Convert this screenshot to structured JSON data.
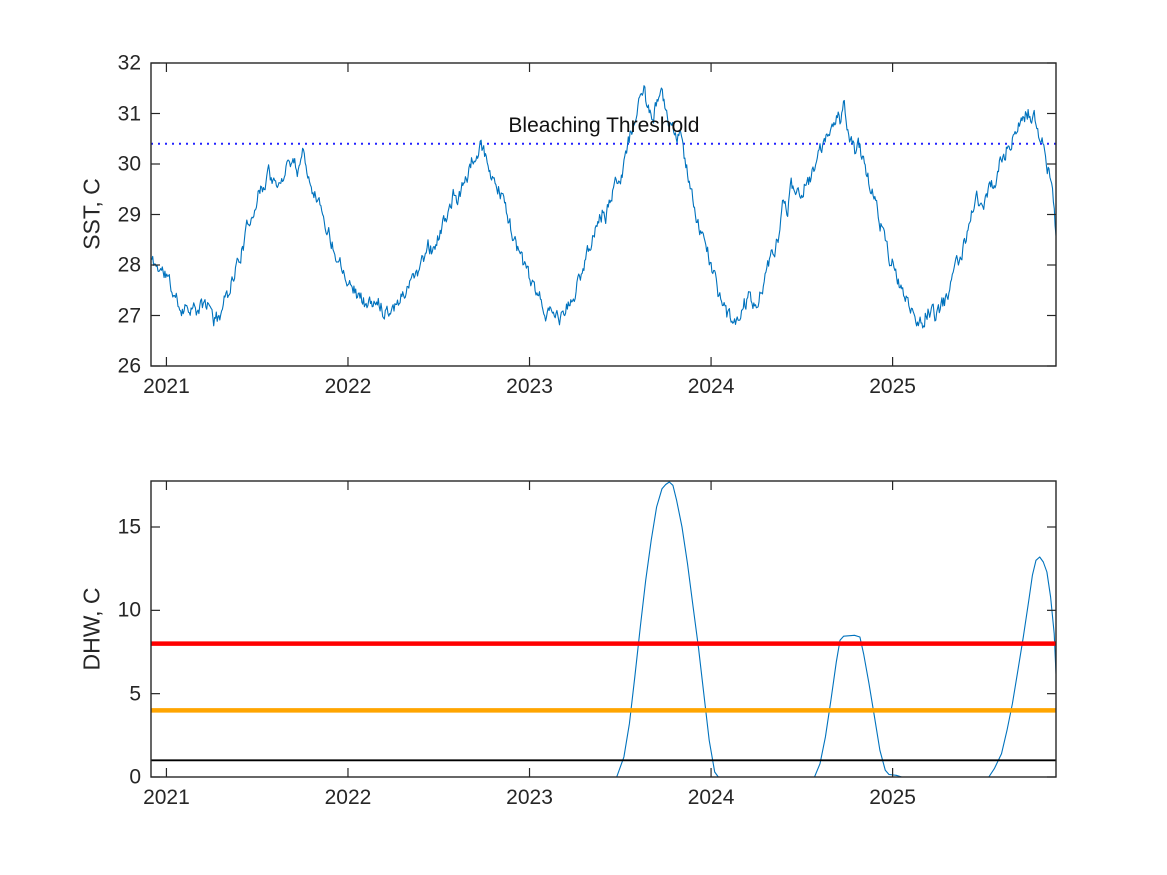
{
  "figure": {
    "background": "#ffffff",
    "axis_color": "#262626",
    "text_color": "#262626"
  },
  "chart_data": [
    {
      "type": "line",
      "title": "",
      "xlabel": "",
      "ylabel": "SST, C",
      "xlim": [
        2020.915,
        2025.9
      ],
      "ylim": [
        26,
        32
      ],
      "xticks": [
        2021,
        2022,
        2023,
        2024,
        2025
      ],
      "xtick_labels": [
        "2021",
        "2022",
        "2023",
        "2024",
        "2025"
      ],
      "yticks": [
        26,
        27,
        28,
        29,
        30,
        31,
        32
      ],
      "ytick_labels": [
        "26",
        "27",
        "28",
        "29",
        "30",
        "31",
        "32"
      ],
      "grid": false,
      "legend": "none",
      "annotation": {
        "text": "Bleaching Threshold",
        "x": 2023.41,
        "y": 30.4
      },
      "series": [
        {
          "id": "bleaching-threshold",
          "color": "#2222FF",
          "style": "dotted",
          "width": 2,
          "value": 30.4
        },
        {
          "id": "sst-daily",
          "color": "#0072BD",
          "style": "solid",
          "width": 1.1,
          "noise": {
            "amplitude": 0.13,
            "seed": 11,
            "samples": 1040,
            "persistence": 0.55
          },
          "points": [
            [
              2020.915,
              28.1
            ],
            [
              2020.94,
              28.0
            ],
            [
              2021.0,
              27.8
            ],
            [
              2021.04,
              27.4
            ],
            [
              2021.08,
              27.15
            ],
            [
              2021.13,
              27.2
            ],
            [
              2021.17,
              27.05
            ],
            [
              2021.21,
              27.25
            ],
            [
              2021.25,
              27.1
            ],
            [
              2021.27,
              26.85
            ],
            [
              2021.31,
              27.2
            ],
            [
              2021.33,
              27.4
            ],
            [
              2021.38,
              27.9
            ],
            [
              2021.42,
              28.35
            ],
            [
              2021.46,
              28.9
            ],
            [
              2021.5,
              29.35
            ],
            [
              2021.54,
              29.6
            ],
            [
              2021.56,
              29.9
            ],
            [
              2021.58,
              29.75
            ],
            [
              2021.6,
              29.5
            ],
            [
              2021.63,
              29.6
            ],
            [
              2021.65,
              29.9
            ],
            [
              2021.67,
              30.05
            ],
            [
              2021.7,
              30.1
            ],
            [
              2021.72,
              29.9
            ],
            [
              2021.75,
              30.25
            ],
            [
              2021.77,
              30.05
            ],
            [
              2021.79,
              29.7
            ],
            [
              2021.83,
              29.35
            ],
            [
              2021.88,
              28.8
            ],
            [
              2021.92,
              28.35
            ],
            [
              2021.96,
              28.05
            ],
            [
              2022.0,
              27.75
            ],
            [
              2022.04,
              27.5
            ],
            [
              2022.08,
              27.3
            ],
            [
              2022.13,
              27.2
            ],
            [
              2022.17,
              27.25
            ],
            [
              2022.21,
              27.1
            ],
            [
              2022.25,
              27.2
            ],
            [
              2022.29,
              27.35
            ],
            [
              2022.33,
              27.6
            ],
            [
              2022.38,
              27.9
            ],
            [
              2022.42,
              28.15
            ],
            [
              2022.44,
              28.5
            ],
            [
              2022.46,
              28.3
            ],
            [
              2022.5,
              28.55
            ],
            [
              2022.54,
              28.95
            ],
            [
              2022.58,
              29.35
            ],
            [
              2022.6,
              29.2
            ],
            [
              2022.63,
              29.55
            ],
            [
              2022.67,
              29.9
            ],
            [
              2022.69,
              30.1
            ],
            [
              2022.71,
              30.0
            ],
            [
              2022.73,
              30.35
            ],
            [
              2022.75,
              30.2
            ],
            [
              2022.77,
              29.95
            ],
            [
              2022.79,
              29.8
            ],
            [
              2022.83,
              29.55
            ],
            [
              2022.88,
              29.0
            ],
            [
              2022.92,
              28.45
            ],
            [
              2022.96,
              28.05
            ],
            [
              2023.0,
              27.75
            ],
            [
              2023.04,
              27.35
            ],
            [
              2023.08,
              27.1
            ],
            [
              2023.13,
              27.0
            ],
            [
              2023.17,
              26.95
            ],
            [
              2023.21,
              27.15
            ],
            [
              2023.25,
              27.4
            ],
            [
              2023.29,
              27.9
            ],
            [
              2023.33,
              28.4
            ],
            [
              2023.38,
              28.85
            ],
            [
              2023.4,
              29.1
            ],
            [
              2023.42,
              28.95
            ],
            [
              2023.46,
              29.45
            ],
            [
              2023.5,
              29.85
            ],
            [
              2023.54,
              30.3
            ],
            [
              2023.58,
              30.9
            ],
            [
              2023.61,
              31.25
            ],
            [
              2023.63,
              31.45
            ],
            [
              2023.65,
              31.1
            ],
            [
              2023.67,
              30.9
            ],
            [
              2023.69,
              31.05
            ],
            [
              2023.71,
              31.2
            ],
            [
              2023.73,
              31.3
            ],
            [
              2023.75,
              31.1
            ],
            [
              2023.77,
              30.85
            ],
            [
              2023.79,
              30.7
            ],
            [
              2023.81,
              30.55
            ],
            [
              2023.83,
              30.5
            ],
            [
              2023.86,
              30.0
            ],
            [
              2023.88,
              29.6
            ],
            [
              2023.92,
              29.0
            ],
            [
              2023.96,
              28.45
            ],
            [
              2024.0,
              28.0
            ],
            [
              2024.04,
              27.5
            ],
            [
              2024.08,
              27.1
            ],
            [
              2024.13,
              26.75
            ],
            [
              2024.15,
              27.0
            ],
            [
              2024.17,
              27.1
            ],
            [
              2024.21,
              27.35
            ],
            [
              2024.23,
              27.15
            ],
            [
              2024.25,
              27.3
            ],
            [
              2024.29,
              27.6
            ],
            [
              2024.33,
              28.15
            ],
            [
              2024.38,
              28.65
            ],
            [
              2024.4,
              29.3
            ],
            [
              2024.42,
              29.1
            ],
            [
              2024.44,
              29.5
            ],
            [
              2024.46,
              29.55
            ],
            [
              2024.5,
              29.45
            ],
            [
              2024.52,
              29.7
            ],
            [
              2024.54,
              29.6
            ],
            [
              2024.58,
              30.05
            ],
            [
              2024.63,
              30.5
            ],
            [
              2024.67,
              30.8
            ],
            [
              2024.69,
              31.0
            ],
            [
              2024.71,
              30.9
            ],
            [
              2024.73,
              31.3
            ],
            [
              2024.75,
              30.75
            ],
            [
              2024.77,
              30.4
            ],
            [
              2024.79,
              30.25
            ],
            [
              2024.81,
              30.35
            ],
            [
              2024.83,
              30.2
            ],
            [
              2024.86,
              29.85
            ],
            [
              2024.88,
              29.55
            ],
            [
              2024.92,
              29.0
            ],
            [
              2024.96,
              28.45
            ],
            [
              2025.0,
              28.0
            ],
            [
              2025.04,
              27.6
            ],
            [
              2025.08,
              27.2
            ],
            [
              2025.13,
              26.95
            ],
            [
              2025.17,
              26.85
            ],
            [
              2025.19,
              27.05
            ],
            [
              2025.21,
              27.15
            ],
            [
              2025.23,
              27.0
            ],
            [
              2025.25,
              27.05
            ],
            [
              2025.29,
              27.3
            ],
            [
              2025.33,
              27.75
            ],
            [
              2025.38,
              28.25
            ],
            [
              2025.42,
              28.75
            ],
            [
              2025.46,
              29.3
            ],
            [
              2025.48,
              29.2
            ],
            [
              2025.5,
              29.15
            ],
            [
              2025.52,
              29.4
            ],
            [
              2025.54,
              29.5
            ],
            [
              2025.58,
              29.9
            ],
            [
              2025.63,
              30.3
            ],
            [
              2025.67,
              30.6
            ],
            [
              2025.71,
              30.85
            ],
            [
              2025.73,
              30.95
            ],
            [
              2025.75,
              31.0
            ],
            [
              2025.77,
              30.9
            ],
            [
              2025.79,
              30.85
            ],
            [
              2025.81,
              30.6
            ],
            [
              2025.83,
              30.35
            ],
            [
              2025.85,
              30.0
            ],
            [
              2025.88,
              29.5
            ],
            [
              2025.9,
              28.5
            ]
          ]
        }
      ]
    },
    {
      "type": "line",
      "title": "",
      "xlabel": "",
      "ylabel": "DHW, C",
      "xlim": [
        2020.915,
        2025.9
      ],
      "ylim": [
        0,
        17.76
      ],
      "xticks": [
        2021,
        2022,
        2023,
        2024,
        2025
      ],
      "xtick_labels": [
        "2021",
        "2022",
        "2023",
        "2024",
        "2025"
      ],
      "yticks": [
        0,
        5,
        10,
        15
      ],
      "ytick_labels": [
        "0",
        "5",
        "10",
        "15"
      ],
      "grid": false,
      "legend": "none",
      "series": [
        {
          "id": "dhw",
          "color": "#0072BD",
          "style": "solid",
          "width": 1.1,
          "points": [
            [
              2020.915,
              0
            ],
            [
              2023.48,
              0
            ],
            [
              2023.52,
              1.2
            ],
            [
              2023.55,
              3.2
            ],
            [
              2023.58,
              6.0
            ],
            [
              2023.61,
              9.0
            ],
            [
              2023.64,
              11.8
            ],
            [
              2023.67,
              14.2
            ],
            [
              2023.7,
              16.2
            ],
            [
              2023.73,
              17.3
            ],
            [
              2023.75,
              17.55
            ],
            [
              2023.77,
              17.7
            ],
            [
              2023.79,
              17.5
            ],
            [
              2023.81,
              16.6
            ],
            [
              2023.84,
              15.0
            ],
            [
              2023.87,
              12.8
            ],
            [
              2023.9,
              10.3
            ],
            [
              2023.93,
              7.8
            ],
            [
              2023.96,
              5.0
            ],
            [
              2023.99,
              2.2
            ],
            [
              2024.02,
              0.3
            ],
            [
              2024.04,
              0
            ],
            [
              2024.57,
              0
            ],
            [
              2024.6,
              0.8
            ],
            [
              2024.63,
              2.4
            ],
            [
              2024.66,
              4.6
            ],
            [
              2024.69,
              6.9
            ],
            [
              2024.71,
              8.2
            ],
            [
              2024.73,
              8.45
            ],
            [
              2024.79,
              8.5
            ],
            [
              2024.82,
              8.4
            ],
            [
              2024.84,
              7.4
            ],
            [
              2024.87,
              5.6
            ],
            [
              2024.9,
              3.6
            ],
            [
              2024.93,
              1.6
            ],
            [
              2024.96,
              0.4
            ],
            [
              2024.98,
              0.15
            ],
            [
              2025.02,
              0.1
            ],
            [
              2025.05,
              0
            ],
            [
              2025.53,
              0
            ],
            [
              2025.56,
              0.5
            ],
            [
              2025.6,
              1.4
            ],
            [
              2025.63,
              2.8
            ],
            [
              2025.66,
              4.4
            ],
            [
              2025.69,
              6.4
            ],
            [
              2025.72,
              8.4
            ],
            [
              2025.75,
              10.6
            ],
            [
              2025.77,
              12.1
            ],
            [
              2025.79,
              13.0
            ],
            [
              2025.81,
              13.2
            ],
            [
              2025.83,
              12.9
            ],
            [
              2025.85,
              12.3
            ],
            [
              2025.87,
              10.8
            ],
            [
              2025.89,
              8.6
            ],
            [
              2025.9,
              6.2
            ]
          ]
        },
        {
          "id": "dhw-level-1",
          "color": "#000000",
          "style": "solid",
          "width": 1.8,
          "value": 1
        },
        {
          "id": "dhw-level-4",
          "color": "#FFA500",
          "style": "solid",
          "width": 4.5,
          "value": 4
        },
        {
          "id": "dhw-level-8",
          "color": "#FF0000",
          "style": "solid",
          "width": 4.5,
          "value": 8
        }
      ]
    }
  ]
}
